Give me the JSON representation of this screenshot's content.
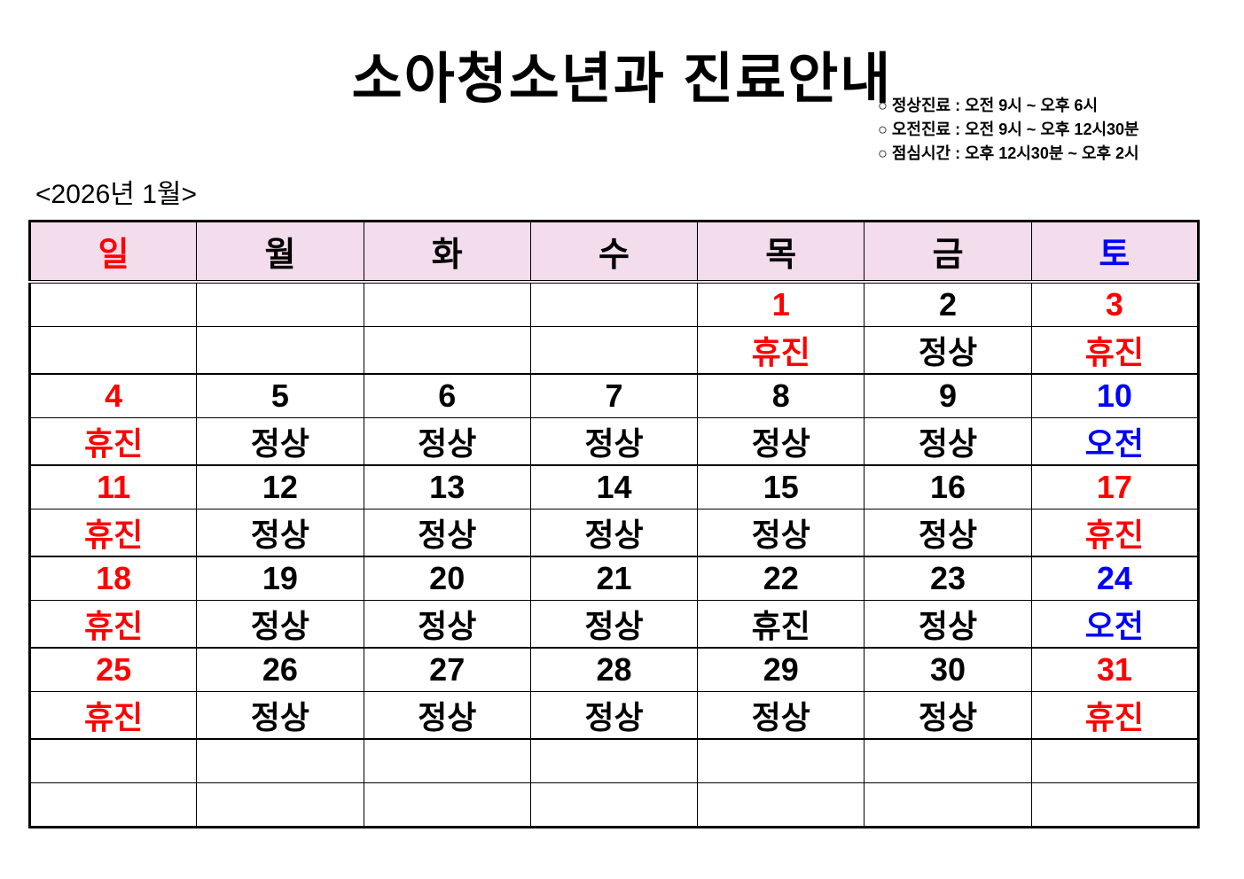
{
  "title": "소아청소년과 진료안내",
  "hours": [
    "○ 정상진료 : 오전 9시 ~ 오후 6시",
    "○ 오전진료 : 오전 9시 ~ 오후 12시30분",
    "○ 점심시간 : 오후 12시30분 ~ 오후 2시"
  ],
  "month_label": "<2026년 1월>",
  "colors": {
    "holiday": "#ff0000",
    "saturday": "#0000ff",
    "normal": "#000000"
  },
  "weekdays": [
    {
      "label": "일",
      "color": "#ff0000"
    },
    {
      "label": "월",
      "color": "#000000"
    },
    {
      "label": "화",
      "color": "#000000"
    },
    {
      "label": "수",
      "color": "#000000"
    },
    {
      "label": "목",
      "color": "#000000"
    },
    {
      "label": "금",
      "color": "#000000"
    },
    {
      "label": "토",
      "color": "#0000ff"
    }
  ],
  "weeks": [
    [
      {
        "day": "",
        "status": ""
      },
      {
        "day": "",
        "status": ""
      },
      {
        "day": "",
        "status": ""
      },
      {
        "day": "",
        "status": ""
      },
      {
        "day": "1",
        "status": "휴진",
        "dc": "#ff0000",
        "sc": "#ff0000"
      },
      {
        "day": "2",
        "status": "정상"
      },
      {
        "day": "3",
        "status": "휴진",
        "dc": "#ff0000",
        "sc": "#ff0000"
      }
    ],
    [
      {
        "day": "4",
        "status": "휴진",
        "dc": "#ff0000",
        "sc": "#ff0000"
      },
      {
        "day": "5",
        "status": "정상"
      },
      {
        "day": "6",
        "status": "정상"
      },
      {
        "day": "7",
        "status": "정상"
      },
      {
        "day": "8",
        "status": "정상"
      },
      {
        "day": "9",
        "status": "정상"
      },
      {
        "day": "10",
        "status": "오전",
        "dc": "#0000ff",
        "sc": "#0000ff"
      }
    ],
    [
      {
        "day": "11",
        "status": "휴진",
        "dc": "#ff0000",
        "sc": "#ff0000"
      },
      {
        "day": "12",
        "status": "정상"
      },
      {
        "day": "13",
        "status": "정상"
      },
      {
        "day": "14",
        "status": "정상"
      },
      {
        "day": "15",
        "status": "정상"
      },
      {
        "day": "16",
        "status": "정상"
      },
      {
        "day": "17",
        "status": "휴진",
        "dc": "#ff0000",
        "sc": "#ff0000"
      }
    ],
    [
      {
        "day": "18",
        "status": "휴진",
        "dc": "#ff0000",
        "sc": "#ff0000"
      },
      {
        "day": "19",
        "status": "정상"
      },
      {
        "day": "20",
        "status": "정상"
      },
      {
        "day": "21",
        "status": "정상"
      },
      {
        "day": "22",
        "status": "휴진"
      },
      {
        "day": "23",
        "status": "정상"
      },
      {
        "day": "24",
        "status": "오전",
        "dc": "#0000ff",
        "sc": "#0000ff"
      }
    ],
    [
      {
        "day": "25",
        "status": "휴진",
        "dc": "#ff0000",
        "sc": "#ff0000"
      },
      {
        "day": "26",
        "status": "정상"
      },
      {
        "day": "27",
        "status": "정상"
      },
      {
        "day": "28",
        "status": "정상"
      },
      {
        "day": "29",
        "status": "정상"
      },
      {
        "day": "30",
        "status": "정상"
      },
      {
        "day": "31",
        "status": "휴진",
        "dc": "#ff0000",
        "sc": "#ff0000"
      }
    ],
    [
      {
        "day": "",
        "status": ""
      },
      {
        "day": "",
        "status": ""
      },
      {
        "day": "",
        "status": ""
      },
      {
        "day": "",
        "status": ""
      },
      {
        "day": "",
        "status": ""
      },
      {
        "day": "",
        "status": ""
      },
      {
        "day": "",
        "status": ""
      }
    ]
  ]
}
